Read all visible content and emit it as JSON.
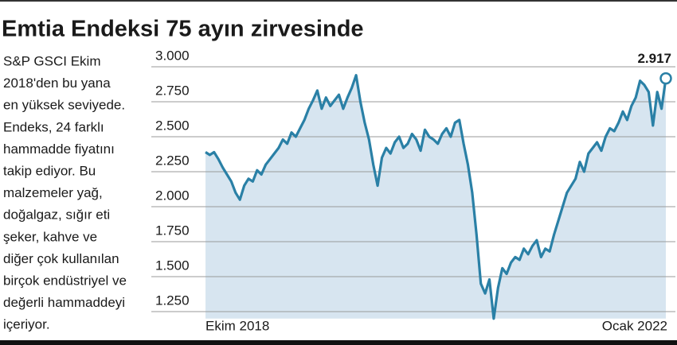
{
  "chart_data": {
    "type": "line",
    "title": "Emtia Endeksi 75 ayın zirvesinde",
    "description_lines": [
      "S&P GSCI Ekim",
      "2018'den bu yana",
      "en yüksek seviyede.",
      "Endeks, 24 farklı",
      "hammadde fiyatını",
      "takip ediyor. Bu",
      "malzemeler yağ,",
      "doğalgaz, sığır eti",
      "şeker, kahve ve",
      "diğer çok kullanılan",
      "birçok endüstriyel ve",
      "değerli hammaddeyi",
      "içeriyor."
    ],
    "categories": [
      "Ekim 2018",
      null,
      null,
      null,
      null,
      null,
      null,
      null,
      null,
      null,
      null,
      null,
      null,
      null,
      null,
      null,
      null,
      null,
      null,
      null,
      null,
      null,
      null,
      null,
      null,
      null,
      null,
      null,
      null,
      null,
      null,
      null,
      null,
      null,
      null,
      null,
      null,
      null,
      null,
      null,
      null,
      null,
      null,
      null,
      null,
      null,
      null,
      null,
      null,
      null,
      null,
      null,
      null,
      null,
      null,
      null,
      null,
      null,
      null,
      null,
      null,
      null,
      null,
      null,
      null,
      null,
      null,
      null,
      null,
      null,
      null,
      null,
      null,
      null,
      null,
      null,
      null,
      null,
      null,
      null,
      null,
      null,
      null,
      null,
      null,
      null,
      null,
      null,
      null,
      null,
      null,
      null,
      null,
      null,
      null,
      null,
      null,
      null,
      null,
      null,
      null,
      null,
      null,
      null,
      null,
      null,
      null,
      "Ocak 2022"
    ],
    "series": [
      {
        "color": "#2a80a6",
        "fill": "#d7e5f0",
        "values": [
          2390,
          2370,
          2390,
          2340,
          2280,
          2230,
          2180,
          2100,
          2050,
          2150,
          2200,
          2180,
          2260,
          2230,
          2300,
          2340,
          2380,
          2420,
          2480,
          2450,
          2530,
          2500,
          2560,
          2620,
          2700,
          2760,
          2830,
          2700,
          2780,
          2720,
          2760,
          2800,
          2700,
          2780,
          2850,
          2940,
          2750,
          2600,
          2480,
          2300,
          2150,
          2350,
          2420,
          2380,
          2460,
          2500,
          2420,
          2450,
          2520,
          2480,
          2400,
          2550,
          2500,
          2480,
          2450,
          2520,
          2560,
          2500,
          2600,
          2620,
          2450,
          2300,
          2100,
          1800,
          1450,
          1380,
          1480,
          1200,
          1420,
          1560,
          1520,
          1600,
          1640,
          1620,
          1700,
          1660,
          1720,
          1760,
          1640,
          1700,
          1680,
          1800,
          1900,
          2000,
          2100,
          2150,
          2200,
          2320,
          2250,
          2380,
          2420,
          2460,
          2400,
          2500,
          2560,
          2540,
          2600,
          2680,
          2620,
          2720,
          2780,
          2900,
          2870,
          2820,
          2580,
          2820,
          2700,
          2917
        ],
        "value_labels": [
          null,
          null,
          null,
          null,
          null,
          null,
          null,
          null,
          null,
          null,
          null,
          null,
          null,
          null,
          null,
          null,
          null,
          null,
          null,
          null,
          null,
          null,
          null,
          null,
          null,
          null,
          null,
          null,
          null,
          null,
          null,
          null,
          null,
          null,
          null,
          null,
          null,
          null,
          null,
          null,
          null,
          null,
          null,
          null,
          null,
          null,
          null,
          null,
          null,
          null,
          null,
          null,
          null,
          null,
          null,
          null,
          null,
          null,
          null,
          null,
          null,
          null,
          null,
          null,
          null,
          null,
          null,
          null,
          null,
          null,
          null,
          null,
          null,
          null,
          null,
          null,
          null,
          null,
          null,
          null,
          null,
          null,
          null,
          null,
          null,
          null,
          null,
          null,
          null,
          null,
          null,
          null,
          null,
          null,
          null,
          null,
          null,
          null,
          null,
          null,
          null,
          null,
          null,
          null,
          null,
          null,
          null,
          "2.917"
        ]
      }
    ],
    "ylim": [
      1200,
      3000
    ],
    "yticks": [
      {
        "value": 3000,
        "label": "3.000"
      },
      {
        "value": 2750,
        "label": "2.750"
      },
      {
        "value": 2500,
        "label": "2.500"
      },
      {
        "value": 2250,
        "label": "2.250"
      },
      {
        "value": 2000,
        "label": "2.000"
      },
      {
        "value": 1750,
        "label": "1.750"
      },
      {
        "value": 1500,
        "label": "1.500"
      },
      {
        "value": 1250,
        "label": "1.250"
      }
    ],
    "grid": true
  }
}
